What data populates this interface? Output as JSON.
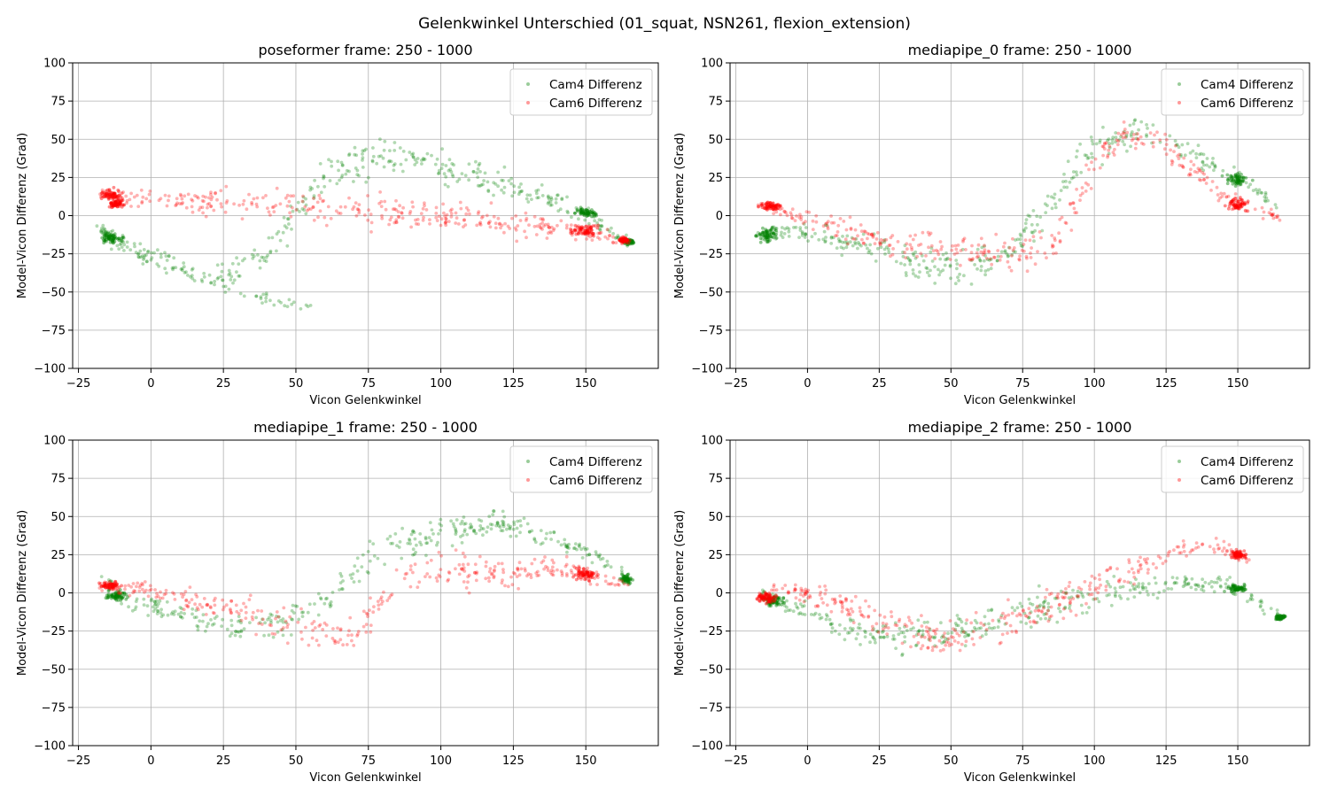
{
  "figure": {
    "suptitle": "Gelenkwinkel Unterschied (01_squat, NSN261, flexion_extension)"
  },
  "colors": {
    "cam4": "#008000",
    "cam6": "#ff0000",
    "grid": "#b0b0b0",
    "axes": "#000000"
  },
  "chart_data": [
    {
      "type": "scatter",
      "title": "poseformer frame: 250 - 1000",
      "xlabel": "Vicon Gelenkwinkel",
      "ylabel": "Model-Vicon Differenz (Grad)",
      "xlim": [
        -27,
        175
      ],
      "ylim": [
        -100,
        100
      ],
      "xticks": [
        -25,
        0,
        25,
        50,
        75,
        100,
        125,
        150
      ],
      "yticks": [
        -100,
        -75,
        -50,
        -25,
        0,
        25,
        50,
        75,
        100
      ],
      "grid": true,
      "legend_position": "top-right",
      "series": [
        {
          "name": "Cam4 Differenz",
          "color": "#008000",
          "shape": [
            [
              -18,
              -8
            ],
            [
              -15,
              -12
            ],
            [
              -10,
              -20
            ],
            [
              0,
              -30
            ],
            [
              20,
              -45
            ],
            [
              40,
              -55
            ],
            [
              55,
              -60
            ]
          ],
          "curve": [
            [
              -18,
              -8
            ],
            [
              -10,
              -19
            ],
            [
              5,
              -30
            ],
            [
              20,
              -42
            ],
            [
              40,
              -25
            ],
            [
              55,
              15
            ],
            [
              70,
              35
            ],
            [
              90,
              38
            ],
            [
              110,
              28
            ],
            [
              130,
              15
            ],
            [
              150,
              2
            ],
            [
              165,
              -18
            ]
          ],
          "clusters": [
            [
              -14,
              -15,
              5,
              4
            ],
            [
              150,
              2,
              4,
              3
            ],
            [
              165,
              -17,
              2,
              2
            ]
          ]
        },
        {
          "name": "Cam6 Differenz",
          "color": "#ff0000",
          "curve": [
            [
              -18,
              15
            ],
            [
              -10,
              10
            ],
            [
              0,
              12
            ],
            [
              25,
              8
            ],
            [
              50,
              5
            ],
            [
              75,
              3
            ],
            [
              100,
              0
            ],
            [
              125,
              -5
            ],
            [
              150,
              -10
            ],
            [
              165,
              -18
            ]
          ],
          "clusters": [
            [
              -14,
              14,
              4,
              4
            ],
            [
              -12,
              8,
              3,
              3
            ],
            [
              150,
              -10,
              6,
              4
            ],
            [
              163,
              -16,
              2,
              2
            ]
          ]
        }
      ]
    },
    {
      "type": "scatter",
      "title": "mediapipe_0 frame: 250 - 1000",
      "xlabel": "Vicon Gelenkwinkel",
      "ylabel": "Model-Vicon Differenz (Grad)",
      "xlim": [
        -27,
        175
      ],
      "ylim": [
        -100,
        100
      ],
      "xticks": [
        -25,
        0,
        25,
        50,
        75,
        100,
        125,
        150
      ],
      "yticks": [
        -100,
        -75,
        -50,
        -25,
        0,
        25,
        50,
        75,
        100
      ],
      "grid": true,
      "legend_position": "top-right",
      "series": [
        {
          "name": "Cam4 Differenz",
          "color": "#008000",
          "curve": [
            [
              -18,
              -12
            ],
            [
              -5,
              -10
            ],
            [
              20,
              -20
            ],
            [
              45,
              -35
            ],
            [
              65,
              -30
            ],
            [
              80,
              -5
            ],
            [
              95,
              40
            ],
            [
              115,
              55
            ],
            [
              135,
              40
            ],
            [
              150,
              25
            ],
            [
              165,
              6
            ]
          ],
          "clusters": [
            [
              -14,
              -12,
              4,
              6
            ],
            [
              150,
              24,
              5,
              4
            ]
          ]
        },
        {
          "name": "Cam6 Differenz",
          "color": "#ff0000",
          "curve": [
            [
              -18,
              8
            ],
            [
              -10,
              3
            ],
            [
              5,
              -5
            ],
            [
              25,
              -15
            ],
            [
              50,
              -20
            ],
            [
              70,
              -25
            ],
            [
              85,
              -20
            ],
            [
              100,
              30
            ],
            [
              110,
              55
            ],
            [
              125,
              45
            ],
            [
              140,
              20
            ],
            [
              150,
              8
            ],
            [
              165,
              -1
            ]
          ],
          "clusters": [
            [
              -13,
              6,
              4,
              3
            ],
            [
              150,
              8,
              4,
              5
            ]
          ]
        }
      ]
    },
    {
      "type": "scatter",
      "title": "mediapipe_1 frame: 250 - 1000",
      "xlabel": "Vicon Gelenkwinkel",
      "ylabel": "Model-Vicon Differenz (Grad)",
      "xlim": [
        -27,
        175
      ],
      "ylim": [
        -100,
        100
      ],
      "xticks": [
        -25,
        0,
        25,
        50,
        75,
        100,
        125,
        150
      ],
      "yticks": [
        -100,
        -75,
        -50,
        -25,
        0,
        25,
        50,
        75,
        100
      ],
      "grid": true,
      "legend_position": "top-right",
      "series": [
        {
          "name": "Cam4 Differenz",
          "color": "#008000",
          "curve": [
            [
              -18,
              12
            ],
            [
              -10,
              -3
            ],
            [
              5,
              -12
            ],
            [
              25,
              -20
            ],
            [
              45,
              -20
            ],
            [
              60,
              -5
            ],
            [
              80,
              30
            ],
            [
              100,
              40
            ],
            [
              120,
              45
            ],
            [
              140,
              35
            ],
            [
              155,
              22
            ],
            [
              165,
              10
            ]
          ],
          "clusters": [
            [
              -12,
              -2,
              4,
              4
            ],
            [
              164,
              9,
              2,
              3
            ]
          ]
        },
        {
          "name": "Cam6 Differenz",
          "color": "#ff0000",
          "curve": [
            [
              -18,
              5
            ],
            [
              -5,
              3
            ],
            [
              15,
              -5
            ],
            [
              35,
              -15
            ],
            [
              55,
              -25
            ],
            [
              70,
              -30
            ],
            [
              85,
              10
            ],
            [
              100,
              15
            ],
            [
              120,
              12
            ],
            [
              140,
              18
            ],
            [
              150,
              12
            ],
            [
              165,
              4
            ]
          ],
          "clusters": [
            [
              -14,
              5,
              4,
              3
            ],
            [
              150,
              12,
              4,
              5
            ]
          ]
        }
      ]
    },
    {
      "type": "scatter",
      "title": "mediapipe_2 frame: 250 - 1000",
      "xlabel": "Vicon Gelenkwinkel",
      "ylabel": "Model-Vicon Differenz (Grad)",
      "xlim": [
        -27,
        175
      ],
      "ylim": [
        -100,
        100
      ],
      "xticks": [
        -25,
        0,
        25,
        50,
        75,
        100,
        125,
        150
      ],
      "yticks": [
        -100,
        -75,
        -50,
        -25,
        0,
        25,
        50,
        75,
        100
      ],
      "grid": true,
      "legend_position": "top-right",
      "series": [
        {
          "name": "Cam4 Differenz",
          "color": "#008000",
          "curve": [
            [
              -18,
              0
            ],
            [
              -5,
              -10
            ],
            [
              10,
              -20
            ],
            [
              30,
              -30
            ],
            [
              50,
              -25
            ],
            [
              70,
              -15
            ],
            [
              90,
              -5
            ],
            [
              110,
              0
            ],
            [
              130,
              8
            ],
            [
              150,
              3
            ],
            [
              165,
              -17
            ]
          ],
          "clusters": [
            [
              -12,
              -5,
              4,
              4
            ],
            [
              150,
              3,
              4,
              3
            ],
            [
              165,
              -16,
              2,
              2
            ]
          ]
        },
        {
          "name": "Cam6 Differenz",
          "color": "#ff0000",
          "curve": [
            [
              -18,
              -3
            ],
            [
              -10,
              3
            ],
            [
              10,
              -5
            ],
            [
              30,
              -20
            ],
            [
              45,
              -30
            ],
            [
              65,
              -20
            ],
            [
              80,
              -15
            ],
            [
              100,
              5
            ],
            [
              115,
              15
            ],
            [
              130,
              30
            ],
            [
              145,
              30
            ],
            [
              155,
              20
            ]
          ],
          "clusters": [
            [
              -14,
              -3,
              4,
              4
            ],
            [
              150,
              25,
              3,
              3
            ]
          ]
        }
      ]
    }
  ]
}
